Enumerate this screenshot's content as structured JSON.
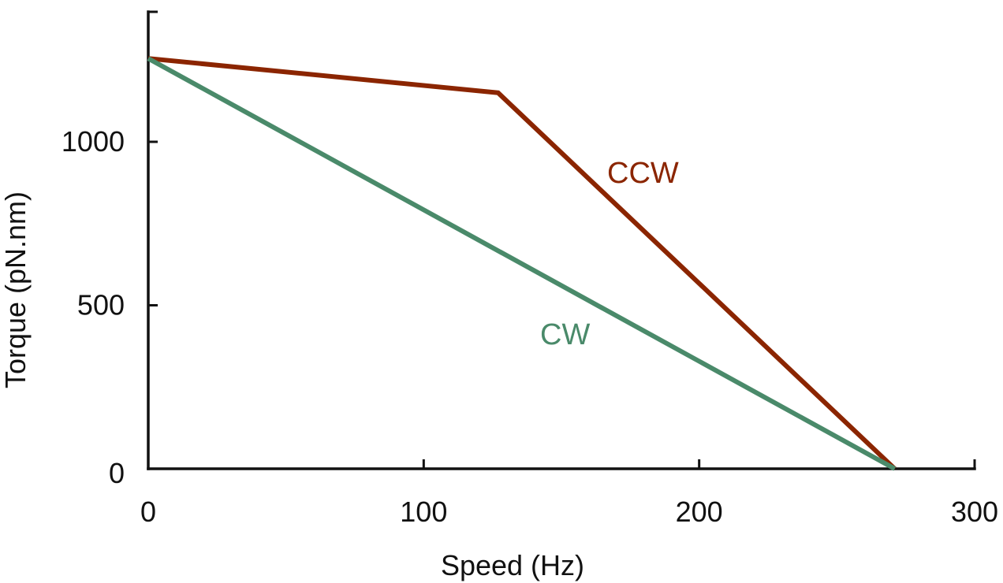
{
  "chart_data": {
    "type": "line",
    "xlabel": "Speed (Hz)",
    "ylabel": "Torque (pN.nm)",
    "xlim": [
      0,
      300
    ],
    "ylim": [
      0,
      1400
    ],
    "x_ticks": [
      0,
      100,
      200,
      300
    ],
    "y_ticks": [
      0,
      500,
      1000
    ],
    "grid": false,
    "legend": "none (series labeled inline)",
    "series": [
      {
        "name": "CCW",
        "color": "#8b2500",
        "x": [
          0,
          127,
          271
        ],
        "y": [
          1255,
          1150,
          0
        ]
      },
      {
        "name": "CW",
        "color": "#4a8a6a",
        "x": [
          0,
          271
        ],
        "y": [
          1255,
          0
        ]
      }
    ]
  }
}
